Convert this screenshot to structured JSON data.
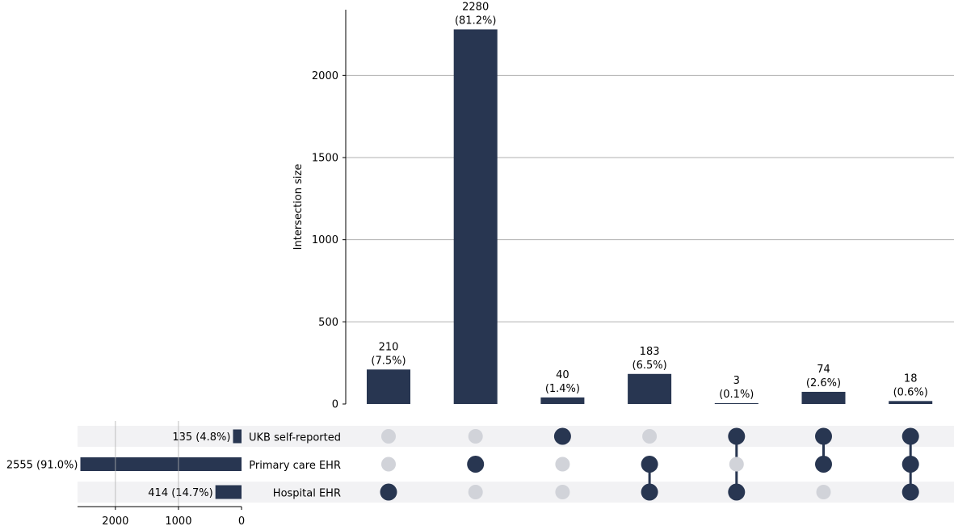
{
  "chart_data": {
    "type": "bar",
    "subtype": "upset",
    "ylabel": "Intersection size",
    "ylim": [
      0,
      2400
    ],
    "yticks": [
      0,
      500,
      1000,
      1500,
      2000
    ],
    "grid": true,
    "sets": [
      {
        "name": "UKB self-reported",
        "size": 135,
        "label": "135 (4.8%)"
      },
      {
        "name": "Primary care EHR",
        "size": 2555,
        "label": "2555 (91.0%)"
      },
      {
        "name": "Hospital EHR",
        "size": 414,
        "label": "414 (14.7%)"
      }
    ],
    "set_size_ticks": [
      2000,
      1000,
      0
    ],
    "set_size_xlim": [
      2600,
      0
    ],
    "intersections": [
      {
        "members": [
          "Hospital EHR"
        ],
        "value": 210,
        "count_label": "210",
        "pct_label": "(7.5%)"
      },
      {
        "members": [
          "Primary care EHR"
        ],
        "value": 2280,
        "count_label": "2280",
        "pct_label": "(81.2%)"
      },
      {
        "members": [
          "UKB self-reported"
        ],
        "value": 40,
        "count_label": "40",
        "pct_label": "(1.4%)"
      },
      {
        "members": [
          "Primary care EHR",
          "Hospital EHR"
        ],
        "value": 183,
        "count_label": "183",
        "pct_label": "(6.5%)"
      },
      {
        "members": [
          "UKB self-reported",
          "Hospital EHR"
        ],
        "value": 3,
        "count_label": "3",
        "pct_label": "(0.1%)"
      },
      {
        "members": [
          "UKB self-reported",
          "Primary care EHR"
        ],
        "value": 74,
        "count_label": "74",
        "pct_label": "(2.6%)"
      },
      {
        "members": [
          "UKB self-reported",
          "Primary care EHR",
          "Hospital EHR"
        ],
        "value": 18,
        "count_label": "18",
        "pct_label": "(0.6%)"
      }
    ],
    "colors": {
      "bar": "#283651",
      "inactive_dot": "#d1d3d9",
      "row_shade": "#f2f2f4",
      "grid": "#b0b0b0",
      "axis": "#000000"
    }
  }
}
